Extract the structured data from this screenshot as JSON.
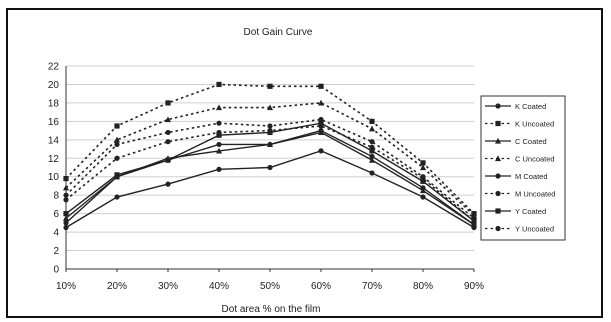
{
  "chart_data": {
    "type": "line",
    "title": "Dot Gain Curve",
    "xlabel": "Dot area % on the film",
    "ylabel": "",
    "categories": [
      "10%",
      "20%",
      "30%",
      "40%",
      "50%",
      "60%",
      "70%",
      "80%",
      "90%"
    ],
    "ylim": [
      0,
      22
    ],
    "yticks": [
      0,
      2,
      4,
      6,
      8,
      10,
      12,
      14,
      16,
      18,
      20,
      22
    ],
    "grid": true,
    "legend_position": "right",
    "series": [
      {
        "name": "K Coated",
        "style": "solid",
        "marker": "circle",
        "values": [
          4.5,
          7.8,
          9.2,
          10.8,
          11.0,
          12.8,
          10.4,
          7.8,
          4.5
        ]
      },
      {
        "name": "K Uncoated",
        "style": "dotted",
        "marker": "square",
        "values": [
          9.8,
          15.5,
          18.0,
          20.0,
          19.8,
          19.8,
          16.0,
          11.5,
          6.0
        ]
      },
      {
        "name": "C Coated",
        "style": "solid",
        "marker": "triangle",
        "values": [
          5.5,
          10.0,
          12.0,
          12.8,
          13.5,
          14.8,
          11.8,
          8.5,
          4.8
        ]
      },
      {
        "name": "C Uncoated",
        "style": "dotted",
        "marker": "triangle",
        "values": [
          8.8,
          14.0,
          16.2,
          17.5,
          17.5,
          18.0,
          15.2,
          11.0,
          5.8
        ]
      },
      {
        "name": "M Coated",
        "style": "solid",
        "marker": "circle",
        "values": [
          5.0,
          10.0,
          11.8,
          13.5,
          13.5,
          15.0,
          12.2,
          8.8,
          4.8
        ]
      },
      {
        "name": "M Uncoated",
        "style": "dotted",
        "marker": "circle",
        "values": [
          8.0,
          13.5,
          14.8,
          15.8,
          15.5,
          16.2,
          13.8,
          10.0,
          5.5
        ]
      },
      {
        "name": "Y Coated",
        "style": "solid",
        "marker": "square",
        "values": [
          6.0,
          10.2,
          11.8,
          14.5,
          14.8,
          15.8,
          12.8,
          9.5,
          5.2
        ]
      },
      {
        "name": "Y Uncoated",
        "style": "dotted",
        "marker": "circle",
        "values": [
          7.5,
          12.0,
          13.8,
          14.8,
          15.0,
          15.5,
          13.2,
          9.8,
          5.2
        ]
      }
    ]
  },
  "colors": {
    "line": "#222222",
    "grid": "#cfcfcf",
    "frame": "#111111"
  }
}
